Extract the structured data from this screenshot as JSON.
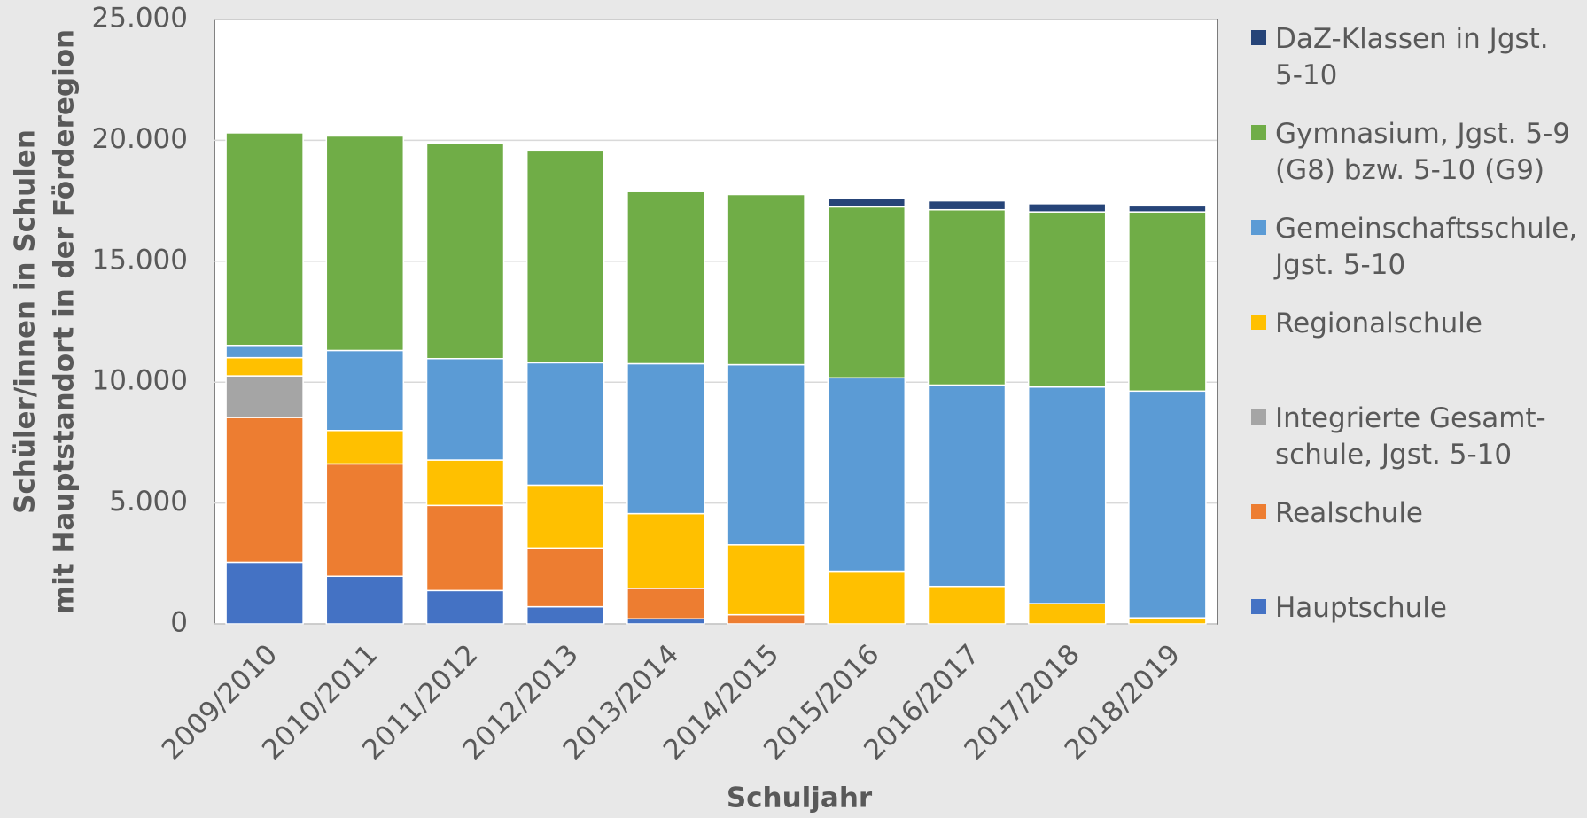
{
  "chart_data": {
    "type": "stacked_bar",
    "ylabel": [
      "Schüler/innen in Schulen",
      "mit Hauptstandort in der Förderegion"
    ],
    "xlabel": "Schuljahr",
    "categories": [
      "2009/2010",
      "2010/2011",
      "2011/2012",
      "2012/2013",
      "2013/2014",
      "2014/2015",
      "2015/2016",
      "2016/2017",
      "2017/2018",
      "2018/2019"
    ],
    "series": [
      {
        "name": "Hauptschule",
        "color": "#4472c4",
        "values": [
          2550,
          1970,
          1380,
          710,
          210,
          0,
          0,
          0,
          0,
          0
        ]
      },
      {
        "name": "Realschule",
        "color": "#ed7d31",
        "values": [
          5990,
          4650,
          3520,
          2430,
          1260,
          380,
          0,
          0,
          0,
          0
        ]
      },
      {
        "name": "Integrierte Gesamt-schule, Jgst. 5-10",
        "color": "#a5a5a5",
        "values": [
          1720,
          0,
          0,
          0,
          0,
          0,
          0,
          0,
          0,
          0
        ]
      },
      {
        "name": "Regionalschule",
        "color": "#ffc000",
        "values": [
          750,
          1380,
          1880,
          2600,
          3090,
          2890,
          2180,
          1550,
          840,
          250
        ]
      },
      {
        "name": "Gemeinschaftsschule, Jgst. 5-10",
        "color": "#5b9bd5",
        "values": [
          510,
          3310,
          4190,
          5060,
          6200,
          7450,
          8000,
          8330,
          8960,
          9380
        ]
      },
      {
        "name": "Gymnasium, Jgst. 5-9 (G8) bzw. 5-10 (G9)",
        "color": "#70ad47",
        "values": [
          8790,
          8870,
          8920,
          8800,
          7120,
          7040,
          7070,
          7250,
          7240,
          7410
        ]
      },
      {
        "name": "DaZ-Klassen in Jgst. 5-10",
        "color": "#264478",
        "values": [
          0,
          0,
          0,
          0,
          0,
          0,
          340,
          370,
          340,
          250
        ]
      }
    ],
    "ylim": [
      0,
      25000
    ],
    "yticks": [
      0,
      {
        "value": 5000,
        "label": "5.000"
      },
      {
        "value": 10000,
        "label": "10.000"
      },
      {
        "value": 15000,
        "label": "15.000"
      },
      {
        "value": 20000,
        "label": "20.000"
      },
      {
        "value": 25000,
        "label": "25.000"
      }
    ],
    "grid": true,
    "legend": "right"
  }
}
